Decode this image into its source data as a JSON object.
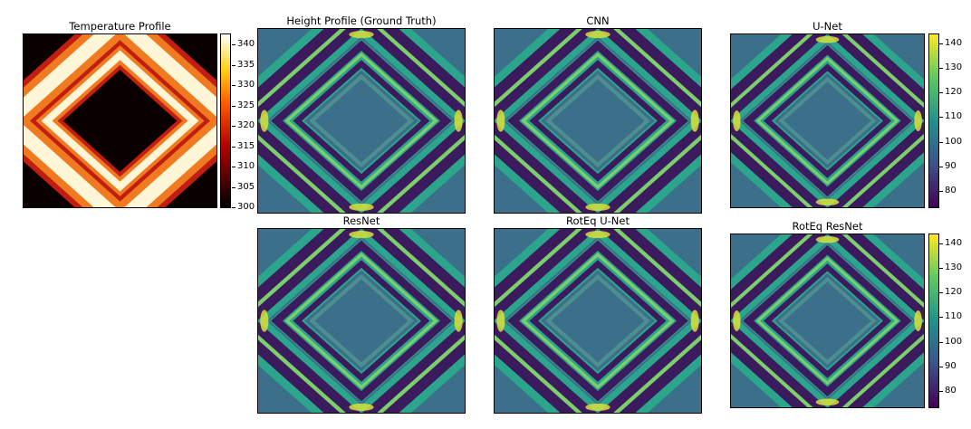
{
  "panels": {
    "temperature": {
      "title": "Temperature Profile"
    },
    "ground_truth": {
      "title": "Height Profile (Ground Truth)"
    },
    "cnn": {
      "title": "CNN"
    },
    "unet": {
      "title": "U-Net"
    },
    "resnet": {
      "title": "ResNet"
    },
    "roteq_unet": {
      "title": "RotEq U-Net"
    },
    "roteq_resnet": {
      "title": "RotEq ResNet"
    }
  },
  "colorbars": {
    "temperature": {
      "colormap": "hot",
      "ticks": [
        "340",
        "335",
        "330",
        "325",
        "320",
        "315",
        "310",
        "305",
        "300"
      ]
    },
    "height_top": {
      "colormap": "viridis",
      "ticks": [
        "140",
        "130",
        "120",
        "110",
        "100",
        "90",
        "80"
      ]
    },
    "height_bottom": {
      "colormap": "viridis",
      "ticks": [
        "140",
        "130",
        "120",
        "110",
        "100",
        "90",
        "80"
      ]
    }
  },
  "colors": {
    "hot_low": "#0b0000",
    "hot_mid": "#e0301a",
    "hot_high": "#fffbe8",
    "viridis_low": "#3b1b5e",
    "viridis_bg": "#3c6f8a",
    "viridis_mid": "#2ba58b",
    "viridis_high": "#d8e03b"
  }
}
